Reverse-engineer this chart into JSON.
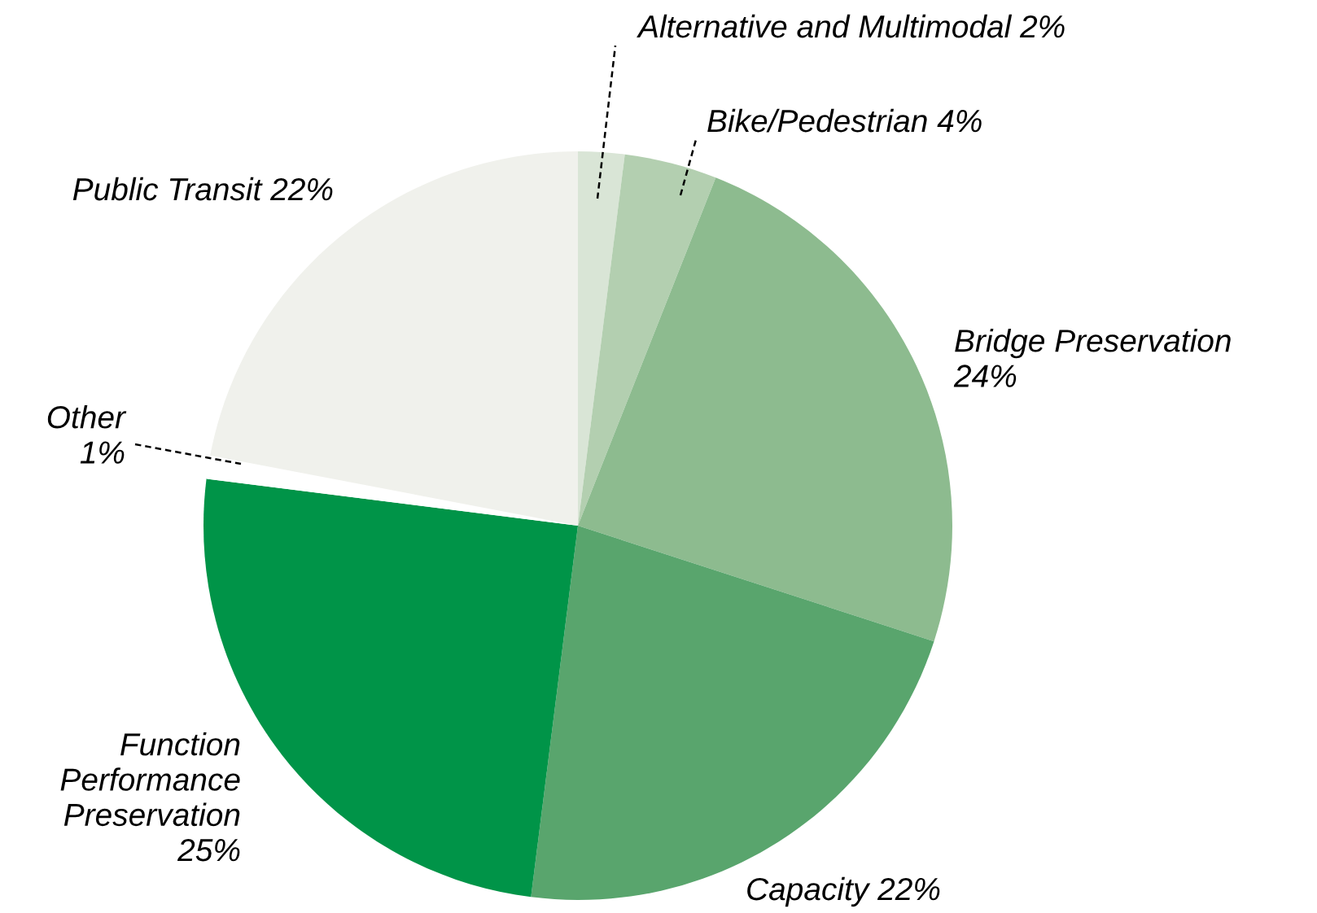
{
  "chart_data": {
    "type": "pie",
    "categories": [
      "Alternative and Multimodal",
      "Bike/Pedestrian",
      "Bridge Preservation",
      "Capacity",
      "Function Performance Preservation",
      "Other",
      "Public Transit"
    ],
    "values": [
      2,
      4,
      24,
      22,
      25,
      1,
      22
    ],
    "value_labels": [
      "2%",
      "4%",
      "24%",
      "22%",
      "25%",
      "1%",
      "22%"
    ],
    "colors": [
      "#d9e5d6",
      "#b3cfb0",
      "#8dbb8f",
      "#59a56d",
      "#009448",
      "#ffffff",
      "#f0f1ec"
    ]
  }
}
